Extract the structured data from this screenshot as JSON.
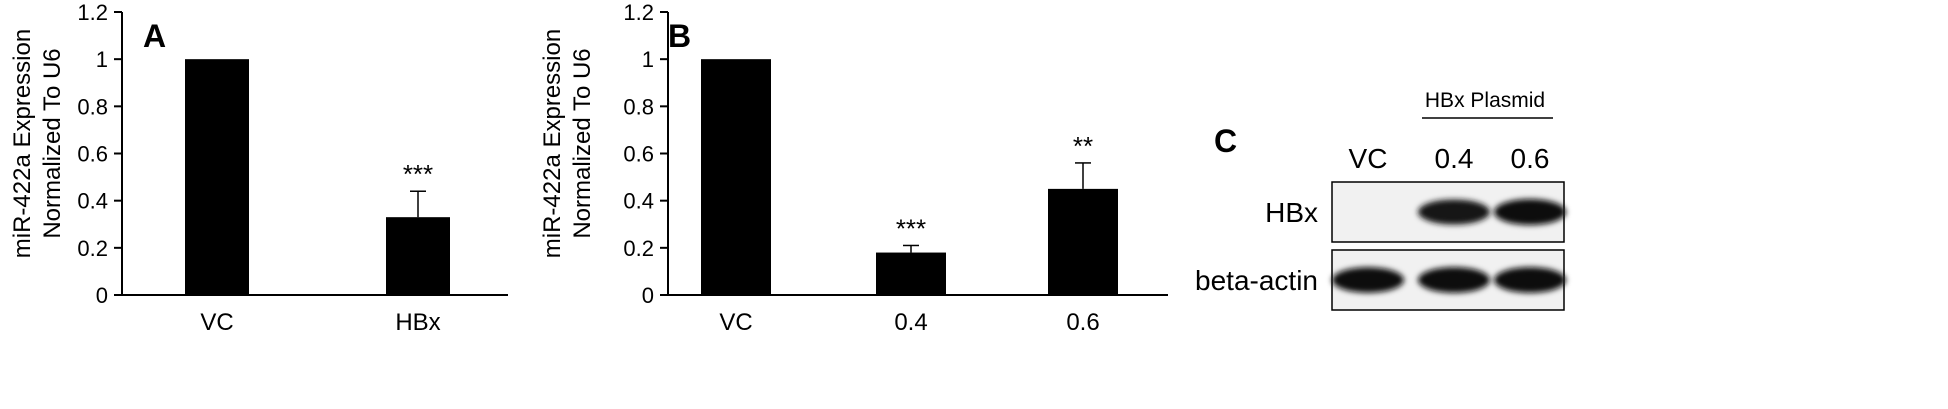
{
  "chart_data": [
    {
      "type": "bar",
      "panel": "A",
      "ylabel": [
        "miR-422a Expression",
        "Normalized To U6"
      ],
      "yticks": [
        "0",
        "0.2",
        "0.4",
        "0.6",
        "0.8",
        "1",
        "1.2"
      ],
      "ylim": [
        0,
        1.2
      ],
      "categories": [
        "VC",
        "HBx"
      ],
      "values": [
        1.0,
        0.33
      ],
      "errors": [
        0.0,
        0.11
      ],
      "significance": [
        "",
        "***"
      ],
      "bar_color": "#000000"
    },
    {
      "type": "bar",
      "panel": "B",
      "ylabel": [
        "miR-422a Expression",
        "Normalized To U6"
      ],
      "yticks": [
        "0",
        "0.2",
        "0.4",
        "0.6",
        "0.8",
        "1",
        "1.2"
      ],
      "ylim": [
        0,
        1.2
      ],
      "categories": [
        "VC",
        "0.4",
        "0.6"
      ],
      "values": [
        1.0,
        0.18,
        0.45
      ],
      "errors": [
        0.0,
        0.03,
        0.11
      ],
      "significance": [
        "",
        "***",
        "**"
      ],
      "bar_color": "#000000"
    }
  ],
  "blot": {
    "panel": "C",
    "group_label": "HBx Plasmid",
    "lanes": [
      "VC",
      "0.4",
      "0.6"
    ],
    "rows": [
      {
        "name": "HBx",
        "intensities": [
          0.0,
          0.85,
          1.0
        ]
      },
      {
        "name": "beta-actin",
        "intensities": [
          0.9,
          0.95,
          0.95
        ]
      }
    ]
  }
}
